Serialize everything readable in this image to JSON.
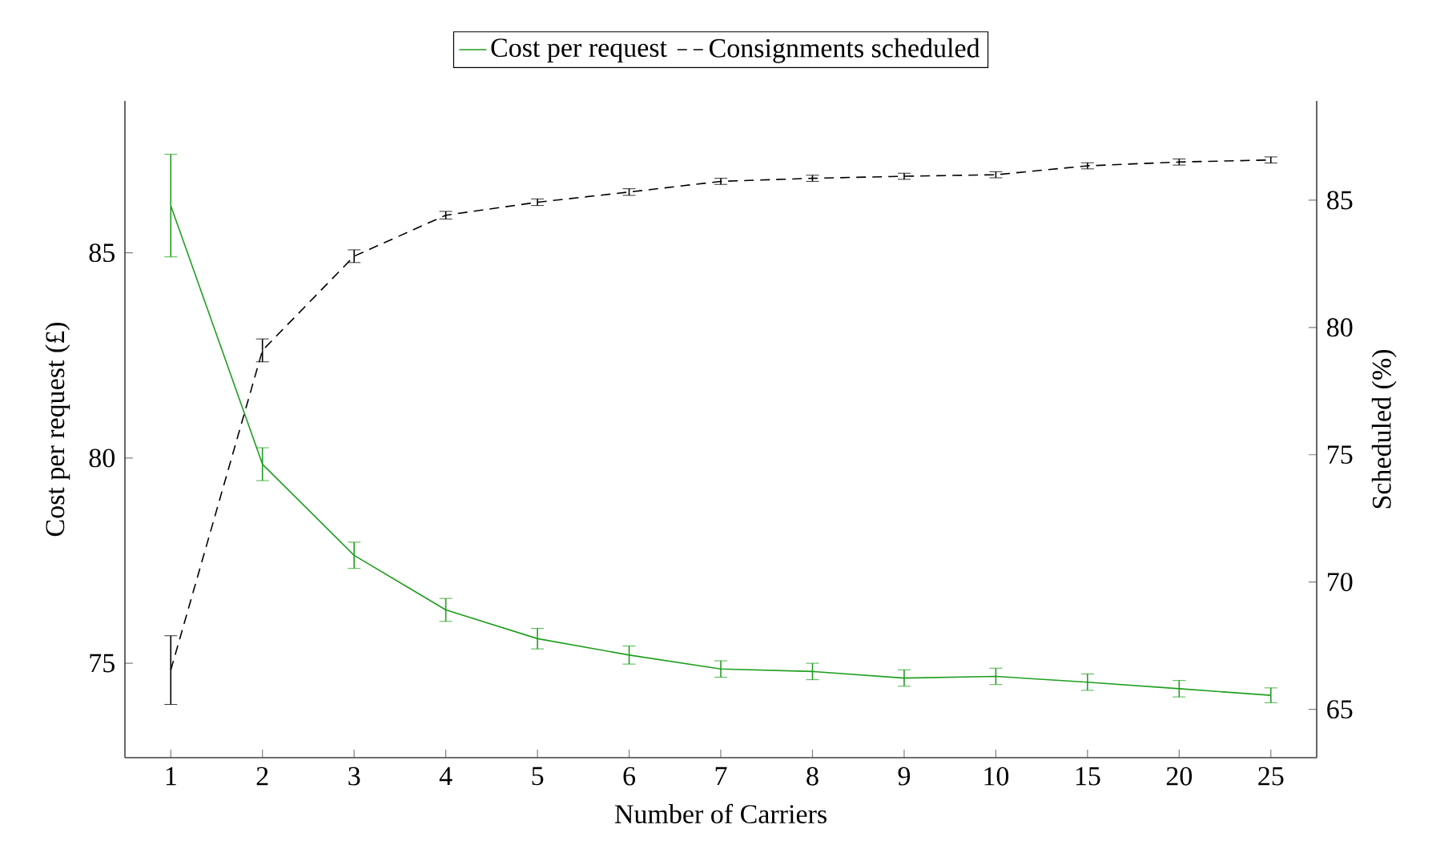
{
  "chart_data": {
    "type": "line",
    "xlabel": "Number of Carriers",
    "ylabel": "Cost per request (£)",
    "y2label": "Scheduled (%)",
    "categories": [
      "1",
      "2",
      "3",
      "4",
      "5",
      "6",
      "7",
      "8",
      "9",
      "10",
      "15",
      "20",
      "25"
    ],
    "series": [
      {
        "name": "Cost per request",
        "color": "#1f9f1f",
        "line_style": "solid",
        "values": [
          86.15,
          79.85,
          77.63,
          76.3,
          75.6,
          75.2,
          74.86,
          74.8,
          74.64,
          74.68,
          74.54,
          74.38,
          74.22
        ],
        "errors": [
          1.25,
          0.4,
          0.32,
          0.28,
          0.25,
          0.22,
          0.2,
          0.2,
          0.2,
          0.2,
          0.2,
          0.2,
          0.18
        ]
      },
      {
        "name": "Consignments scheduled",
        "color": "#000000",
        "line_style": "dashed",
        "axis": "y2",
        "values": [
          66.54,
          79.1,
          82.8,
          84.41,
          84.92,
          85.32,
          85.74,
          85.86,
          85.94,
          86.0,
          86.35,
          86.5,
          86.58
        ],
        "errors": [
          1.35,
          0.45,
          0.25,
          0.15,
          0.13,
          0.13,
          0.12,
          0.12,
          0.12,
          0.12,
          0.12,
          0.12,
          0.12
        ]
      }
    ],
    "ylim": [
      72.7,
      88.7
    ],
    "yticks": [
      75,
      80,
      85
    ],
    "y2lim": [
      63.1,
      88.9
    ],
    "y2ticks": [
      65,
      70,
      75,
      80,
      85
    ],
    "marker": "none",
    "grid": false,
    "legend": "top"
  }
}
